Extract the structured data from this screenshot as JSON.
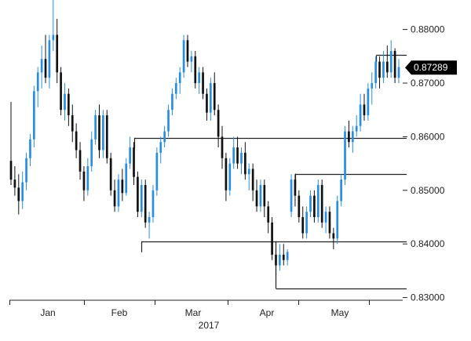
{
  "chart_data": {
    "type": "candlestick",
    "x_ticks": [
      "Jan",
      "Feb",
      "Mar",
      "Apr",
      "May"
    ],
    "year_label": "2017",
    "y_ticks": [
      "0.88000",
      "0.87000",
      "0.86000",
      "0.85000",
      "0.84000",
      "0.83000"
    ],
    "ylim": [
      0.8295,
      0.8855
    ],
    "last_price": "0.87289",
    "colors": {
      "up": "#2a8ee0",
      "down": "#111111",
      "price_tag": "#000000"
    },
    "levels": [
      {
        "value": 0.8598,
        "from_day": 32
      },
      {
        "value": 0.8531,
        "from_day": 74
      },
      {
        "value": 0.8405,
        "from_day": 34
      },
      {
        "value": 0.8317,
        "from_day": 69
      },
      {
        "value": 0.8752,
        "from_day": 95
      }
    ],
    "candles": [
      [
        0.8555,
        0.8665,
        0.851,
        0.852
      ],
      [
        0.852,
        0.8545,
        0.849,
        0.8505
      ],
      [
        0.8505,
        0.853,
        0.8455,
        0.848
      ],
      [
        0.848,
        0.8535,
        0.8465,
        0.8515
      ],
      [
        0.8515,
        0.857,
        0.85,
        0.856
      ],
      [
        0.856,
        0.8605,
        0.8545,
        0.8595
      ],
      [
        0.8595,
        0.8695,
        0.858,
        0.8685
      ],
      [
        0.8685,
        0.873,
        0.8655,
        0.872
      ],
      [
        0.872,
        0.877,
        0.869,
        0.8745
      ],
      [
        0.8745,
        0.879,
        0.87,
        0.871
      ],
      [
        0.871,
        0.879,
        0.869,
        0.878
      ],
      [
        0.878,
        0.886,
        0.876,
        0.879
      ],
      [
        0.879,
        0.882,
        0.87,
        0.872
      ],
      [
        0.872,
        0.873,
        0.864,
        0.865
      ],
      [
        0.865,
        0.87,
        0.863,
        0.868
      ],
      [
        0.868,
        0.869,
        0.862,
        0.864
      ],
      [
        0.864,
        0.866,
        0.859,
        0.861
      ],
      [
        0.861,
        0.8625,
        0.856,
        0.8575
      ],
      [
        0.8575,
        0.859,
        0.852,
        0.8535
      ],
      [
        0.8535,
        0.8545,
        0.848,
        0.85
      ],
      [
        0.85,
        0.856,
        0.849,
        0.8545
      ],
      [
        0.8545,
        0.861,
        0.8535,
        0.8595
      ],
      [
        0.8595,
        0.865,
        0.8585,
        0.864
      ],
      [
        0.864,
        0.866,
        0.856,
        0.8575
      ],
      [
        0.8575,
        0.865,
        0.856,
        0.864
      ],
      [
        0.864,
        0.865,
        0.855,
        0.856
      ],
      [
        0.856,
        0.857,
        0.849,
        0.85
      ],
      [
        0.85,
        0.852,
        0.846,
        0.847
      ],
      [
        0.847,
        0.853,
        0.846,
        0.852
      ],
      [
        0.852,
        0.854,
        0.848,
        0.8495
      ],
      [
        0.8495,
        0.856,
        0.849,
        0.855
      ],
      [
        0.855,
        0.86,
        0.854,
        0.858
      ],
      [
        0.858,
        0.859,
        0.851,
        0.8525
      ],
      [
        0.8525,
        0.8535,
        0.845,
        0.846
      ],
      [
        0.846,
        0.852,
        0.845,
        0.851
      ],
      [
        0.851,
        0.852,
        0.843,
        0.844
      ],
      [
        0.844,
        0.846,
        0.841,
        0.845
      ],
      [
        0.845,
        0.851,
        0.844,
        0.85
      ],
      [
        0.85,
        0.858,
        0.849,
        0.857
      ],
      [
        0.857,
        0.86,
        0.855,
        0.859
      ],
      [
        0.859,
        0.862,
        0.858,
        0.861
      ],
      [
        0.861,
        0.866,
        0.86,
        0.865
      ],
      [
        0.865,
        0.869,
        0.864,
        0.868
      ],
      [
        0.868,
        0.871,
        0.867,
        0.87
      ],
      [
        0.87,
        0.873,
        0.868,
        0.872
      ],
      [
        0.872,
        0.879,
        0.871,
        0.878
      ],
      [
        0.878,
        0.879,
        0.873,
        0.874
      ],
      [
        0.874,
        0.876,
        0.872,
        0.875
      ],
      [
        0.875,
        0.876,
        0.869,
        0.87
      ],
      [
        0.87,
        0.873,
        0.868,
        0.872
      ],
      [
        0.872,
        0.873,
        0.867,
        0.868
      ],
      [
        0.868,
        0.869,
        0.863,
        0.8645
      ],
      [
        0.8645,
        0.871,
        0.863,
        0.87
      ],
      [
        0.87,
        0.872,
        0.864,
        0.865
      ],
      [
        0.865,
        0.866,
        0.858,
        0.86
      ],
      [
        0.86,
        0.862,
        0.854,
        0.856
      ],
      [
        0.856,
        0.857,
        0.848,
        0.85
      ],
      [
        0.85,
        0.856,
        0.849,
        0.855
      ],
      [
        0.855,
        0.86,
        0.854,
        0.858
      ],
      [
        0.858,
        0.86,
        0.854,
        0.855
      ],
      [
        0.855,
        0.858,
        0.853,
        0.857
      ],
      [
        0.857,
        0.859,
        0.852,
        0.853
      ],
      [
        0.853,
        0.855,
        0.85,
        0.854
      ],
      [
        0.854,
        0.855,
        0.848,
        0.85
      ],
      [
        0.85,
        0.852,
        0.846,
        0.847
      ],
      [
        0.847,
        0.852,
        0.846,
        0.851
      ],
      [
        0.851,
        0.852,
        0.845,
        0.847
      ],
      [
        0.847,
        0.848,
        0.842,
        0.844
      ],
      [
        0.844,
        0.845,
        0.837,
        0.838
      ],
      [
        0.838,
        0.839,
        0.834,
        0.836
      ],
      [
        0.836,
        0.84,
        0.835,
        0.838
      ],
      [
        0.838,
        0.84,
        0.836,
        0.837
      ],
      [
        0.837,
        0.839,
        0.836,
        0.8385
      ],
      [
        0.846,
        0.853,
        0.845,
        0.852
      ],
      [
        0.852,
        0.853,
        0.847,
        0.849
      ],
      [
        0.849,
        0.85,
        0.844,
        0.845
      ],
      [
        0.845,
        0.847,
        0.841,
        0.842
      ],
      [
        0.842,
        0.847,
        0.841,
        0.846
      ],
      [
        0.846,
        0.85,
        0.845,
        0.849
      ],
      [
        0.849,
        0.85,
        0.844,
        0.845
      ],
      [
        0.845,
        0.852,
        0.844,
        0.851
      ],
      [
        0.851,
        0.852,
        0.843,
        0.844
      ],
      [
        0.844,
        0.847,
        0.842,
        0.846
      ],
      [
        0.846,
        0.847,
        0.841,
        0.842
      ],
      [
        0.842,
        0.843,
        0.839,
        0.841
      ],
      [
        0.841,
        0.849,
        0.84,
        0.848
      ],
      [
        0.848,
        0.853,
        0.847,
        0.852
      ],
      [
        0.852,
        0.862,
        0.851,
        0.861
      ],
      [
        0.861,
        0.863,
        0.858,
        0.859
      ],
      [
        0.859,
        0.862,
        0.857,
        0.861
      ],
      [
        0.861,
        0.864,
        0.86,
        0.862
      ],
      [
        0.862,
        0.868,
        0.861,
        0.866
      ],
      [
        0.866,
        0.868,
        0.863,
        0.864
      ],
      [
        0.864,
        0.87,
        0.863,
        0.869
      ],
      [
        0.869,
        0.872,
        0.866,
        0.87
      ],
      [
        0.87,
        0.875,
        0.869,
        0.874
      ],
      [
        0.874,
        0.875,
        0.869,
        0.871
      ],
      [
        0.871,
        0.876,
        0.87,
        0.874
      ],
      [
        0.874,
        0.877,
        0.871,
        0.872
      ],
      [
        0.872,
        0.878,
        0.871,
        0.876
      ],
      [
        0.876,
        0.8765,
        0.87,
        0.871
      ],
      [
        0.871,
        0.8745,
        0.87,
        0.873
      ]
    ]
  }
}
